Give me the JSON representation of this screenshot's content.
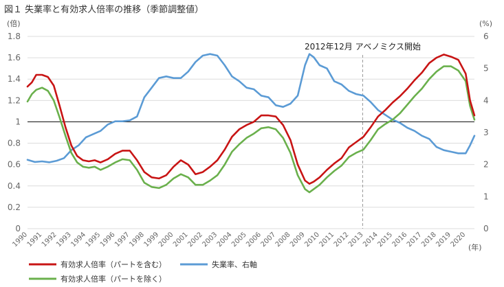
{
  "chart_data": {
    "type": "line",
    "title": "図１ 失業率と有効求人倍率の推移（季節調整値）",
    "y_left_unit": "(倍)",
    "y_right_unit": "(%)",
    "x_unit": "(年)",
    "x_ticks": [
      "1990",
      "1991",
      "1992",
      "1993",
      "1994",
      "1995",
      "1996",
      "1997",
      "1998",
      "1999",
      "2000",
      "2001",
      "2002",
      "2003",
      "2004",
      "2005",
      "2006",
      "2007",
      "2008",
      "2009",
      "2010",
      "2011",
      "2012",
      "2013",
      "2014",
      "2015",
      "2016",
      "2017",
      "2018",
      "2019",
      "2020"
    ],
    "y_left_ticks": [
      "0",
      "0.2",
      "0.4",
      "0.6",
      "0.8",
      "1",
      "1.2",
      "1.4",
      "1.6",
      "1.8"
    ],
    "y_right_ticks": [
      "0",
      "1",
      "2",
      "3",
      "4",
      "5",
      "6"
    ],
    "ylim_left": [
      0,
      1.8
    ],
    "ylim_right": [
      0,
      6
    ],
    "xlim": [
      1990,
      2020.6
    ],
    "reference_line": {
      "y": 1.0,
      "axis": "left"
    },
    "annotation": {
      "x": 2012.95,
      "label": "2012年12月 アベノミクス開始"
    },
    "grid": "horizontal",
    "legend_position": "bottom",
    "series": [
      {
        "name": "有効求人倍率（パートを含む）",
        "axis": "left",
        "color": "#c81414",
        "x": [
          1990,
          1990.3,
          1990.6,
          1991,
          1991.4,
          1991.8,
          1992.2,
          1992.6,
          1993,
          1993.4,
          1993.8,
          1994.2,
          1994.6,
          1995,
          1995.5,
          1996,
          1996.5,
          1997,
          1997.5,
          1998,
          1998.5,
          1999,
          1999.5,
          2000,
          2000.5,
          2001,
          2001.5,
          2002,
          2002.5,
          2003,
          2003.5,
          2004,
          2004.5,
          2005,
          2005.5,
          2006,
          2006.5,
          2007,
          2007.5,
          2008,
          2008.5,
          2009,
          2009.3,
          2009.6,
          2010,
          2010.5,
          2011,
          2011.5,
          2012,
          2012.5,
          2013,
          2013.5,
          2014,
          2014.5,
          2015,
          2015.5,
          2016,
          2016.5,
          2017,
          2017.5,
          2018,
          2018.5,
          2019,
          2019.5,
          2020,
          2020.3,
          2020.6
        ],
        "values": [
          1.33,
          1.37,
          1.44,
          1.44,
          1.42,
          1.34,
          1.15,
          0.95,
          0.78,
          0.68,
          0.64,
          0.63,
          0.64,
          0.62,
          0.65,
          0.7,
          0.73,
          0.73,
          0.64,
          0.53,
          0.48,
          0.47,
          0.5,
          0.58,
          0.64,
          0.6,
          0.51,
          0.53,
          0.58,
          0.64,
          0.74,
          0.86,
          0.93,
          0.97,
          1.0,
          1.06,
          1.06,
          1.05,
          0.97,
          0.83,
          0.6,
          0.45,
          0.42,
          0.44,
          0.48,
          0.55,
          0.61,
          0.66,
          0.76,
          0.81,
          0.86,
          0.95,
          1.05,
          1.11,
          1.18,
          1.24,
          1.31,
          1.39,
          1.46,
          1.55,
          1.6,
          1.63,
          1.61,
          1.58,
          1.45,
          1.2,
          1.06
        ]
      },
      {
        "name": "有効求人倍率（パートを除く）",
        "axis": "left",
        "color": "#6ab04c",
        "x": [
          1990,
          1990.3,
          1990.6,
          1991,
          1991.4,
          1991.8,
          1992.2,
          1992.6,
          1993,
          1993.4,
          1993.8,
          1994.2,
          1994.6,
          1995,
          1995.5,
          1996,
          1996.5,
          1997,
          1997.5,
          1998,
          1998.5,
          1999,
          1999.5,
          2000,
          2000.5,
          2001,
          2001.5,
          2002,
          2002.5,
          2003,
          2003.5,
          2004,
          2004.5,
          2005,
          2005.5,
          2006,
          2006.5,
          2007,
          2007.5,
          2008,
          2008.5,
          2009,
          2009.3,
          2009.6,
          2010,
          2010.5,
          2011,
          2011.5,
          2012,
          2012.5,
          2013,
          2013.5,
          2014,
          2014.5,
          2015,
          2015.5,
          2016,
          2016.5,
          2017,
          2017.5,
          2018,
          2018.5,
          2019,
          2019.5,
          2020,
          2020.3,
          2020.6
        ],
        "values": [
          1.19,
          1.26,
          1.3,
          1.32,
          1.29,
          1.2,
          1.04,
          0.87,
          0.71,
          0.62,
          0.58,
          0.57,
          0.58,
          0.55,
          0.58,
          0.62,
          0.65,
          0.64,
          0.55,
          0.43,
          0.39,
          0.38,
          0.41,
          0.47,
          0.51,
          0.48,
          0.41,
          0.41,
          0.45,
          0.5,
          0.6,
          0.72,
          0.79,
          0.85,
          0.89,
          0.94,
          0.95,
          0.93,
          0.85,
          0.71,
          0.5,
          0.37,
          0.34,
          0.37,
          0.41,
          0.48,
          0.54,
          0.59,
          0.67,
          0.71,
          0.74,
          0.83,
          0.93,
          0.98,
          1.02,
          1.08,
          1.16,
          1.24,
          1.31,
          1.4,
          1.47,
          1.52,
          1.52,
          1.48,
          1.38,
          1.15,
          1.02
        ]
      },
      {
        "name": "失業率、右軸",
        "axis": "right",
        "color": "#5b9bd5",
        "x": [
          1990,
          1990.5,
          1991,
          1991.5,
          1992,
          1992.5,
          1993,
          1993.5,
          1994,
          1994.5,
          1995,
          1995.5,
          1996,
          1996.5,
          1997,
          1997.5,
          1998,
          1998.5,
          1999,
          1999.5,
          2000,
          2000.5,
          2001,
          2001.5,
          2002,
          2002.5,
          2003,
          2003.5,
          2004,
          2004.5,
          2005,
          2005.5,
          2006,
          2006.5,
          2007,
          2007.5,
          2008,
          2008.5,
          2009,
          2009.3,
          2009.6,
          2010,
          2010.5,
          2011,
          2011.5,
          2012,
          2012.5,
          2013,
          2013.5,
          2014,
          2014.5,
          2015,
          2015.5,
          2016,
          2016.5,
          2017,
          2017.5,
          2018,
          2018.5,
          2019,
          2019.5,
          2020,
          2020.3,
          2020.6
        ],
        "values": [
          2.15,
          2.08,
          2.1,
          2.07,
          2.12,
          2.2,
          2.45,
          2.6,
          2.85,
          2.95,
          3.05,
          3.25,
          3.35,
          3.35,
          3.38,
          3.5,
          4.1,
          4.4,
          4.7,
          4.75,
          4.7,
          4.7,
          4.9,
          5.2,
          5.4,
          5.45,
          5.4,
          5.1,
          4.75,
          4.6,
          4.4,
          4.35,
          4.15,
          4.1,
          3.85,
          3.8,
          3.9,
          4.15,
          5.1,
          5.45,
          5.35,
          5.1,
          5.0,
          4.6,
          4.5,
          4.3,
          4.2,
          4.15,
          3.95,
          3.7,
          3.55,
          3.4,
          3.3,
          3.15,
          3.05,
          2.9,
          2.8,
          2.55,
          2.45,
          2.4,
          2.35,
          2.35,
          2.6,
          2.9
        ]
      }
    ]
  }
}
